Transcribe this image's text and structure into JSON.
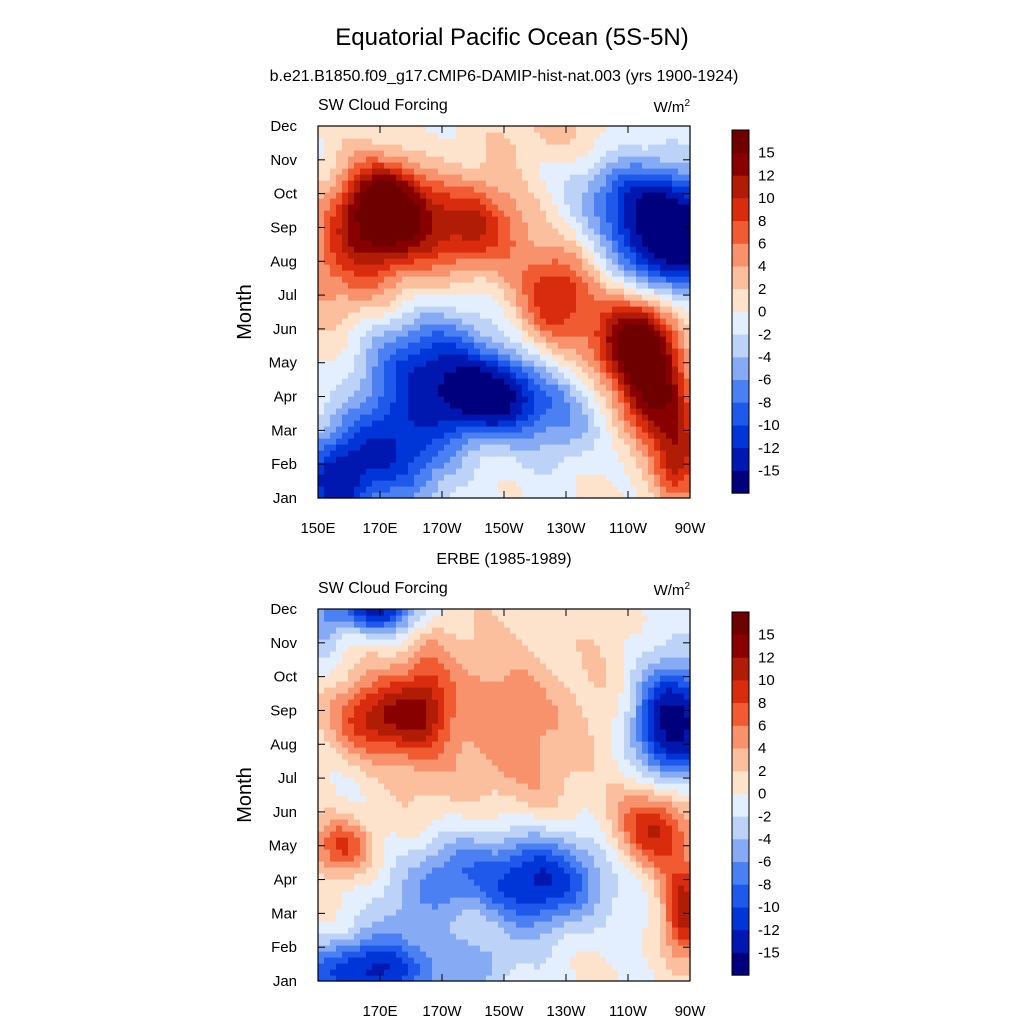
{
  "figure": {
    "title": "Equatorial Pacific Ocean (5S-5N)"
  },
  "chart_data": [
    {
      "type": "heatmap",
      "title": "b.e21.B1850.f09_g17.CMIP6-DAMIP-hist-nat.003 (yrs 1900-1924)",
      "left_label": "SW Cloud Forcing",
      "right_label": "W/m",
      "right_label_sup": "2",
      "ylabel": "Month",
      "xlabel": "",
      "x_ticks": [
        "150E",
        "170E",
        "170W",
        "150W",
        "130W",
        "110W",
        "90W"
      ],
      "y_ticks": [
        "Jan",
        "Feb",
        "Mar",
        "Apr",
        "May",
        "Jun",
        "Jul",
        "Aug",
        "Sep",
        "Oct",
        "Nov",
        "Dec"
      ],
      "xlim": [
        150,
        270
      ],
      "ylim": [
        1,
        12
      ],
      "color_levels": [
        "-15",
        "-12",
        "-10",
        "-8",
        "-6",
        "-4",
        "-2",
        "0",
        "2",
        "4",
        "6",
        "8",
        "10",
        "12",
        "15"
      ],
      "features": [
        {
          "x": 172,
          "m": 9.6,
          "sx": 9,
          "sm": 0.9,
          "a": 17
        },
        {
          "x": 196,
          "m": 9.0,
          "sx": 14,
          "sm": 1.0,
          "a": 11
        },
        {
          "x": 160,
          "m": 8.2,
          "sx": 12,
          "sm": 1.4,
          "a": 8
        },
        {
          "x": 228,
          "m": 7.0,
          "sx": 9,
          "sm": 1.0,
          "a": 10
        },
        {
          "x": 252,
          "m": 5.6,
          "sx": 9,
          "sm": 0.9,
          "a": 18
        },
        {
          "x": 258,
          "m": 4.0,
          "sx": 7,
          "sm": 0.9,
          "a": 14
        },
        {
          "x": 266,
          "m": 2.2,
          "sx": 6,
          "sm": 1.0,
          "a": 11
        },
        {
          "x": 264,
          "m": 8.8,
          "sx": 12,
          "sm": 1.1,
          "a": -21
        },
        {
          "x": 248,
          "m": 10.0,
          "sx": 10,
          "sm": 0.8,
          "a": -7
        },
        {
          "x": 205,
          "m": 4.0,
          "sx": 13,
          "sm": 0.8,
          "a": -17
        },
        {
          "x": 185,
          "m": 5.2,
          "sx": 13,
          "sm": 1.0,
          "a": -10
        },
        {
          "x": 175,
          "m": 2.5,
          "sx": 14,
          "sm": 1.2,
          "a": -11
        },
        {
          "x": 156,
          "m": 1.4,
          "sx": 8,
          "sm": 1.0,
          "a": -12
        },
        {
          "x": 230,
          "m": 3.2,
          "sx": 8,
          "sm": 0.9,
          "a": -5
        },
        {
          "x": 222,
          "m": 11.8,
          "sx": 10,
          "sm": 0.6,
          "a": 3
        }
      ]
    },
    {
      "type": "heatmap",
      "title": "ERBE (1985-1989)",
      "left_label": "SW Cloud Forcing",
      "right_label": "W/m",
      "right_label_sup": "2",
      "ylabel": "Month",
      "xlabel": "",
      "x_ticks": [
        "170E",
        "170W",
        "150W",
        "130W",
        "110W",
        "90W"
      ],
      "y_ticks": [
        "Jan",
        "Feb",
        "Mar",
        "Apr",
        "May",
        "Jun",
        "Jul",
        "Aug",
        "Sep",
        "Oct",
        "Nov",
        "Dec"
      ],
      "xlim": [
        150,
        270
      ],
      "ylim": [
        1,
        12
      ],
      "color_levels": [
        "-15",
        "-12",
        "-10",
        "-8",
        "-6",
        "-4",
        "-2",
        "0",
        "2",
        "4",
        "6",
        "8",
        "10",
        "12",
        "15"
      ],
      "features": [
        {
          "x": 170,
          "m": 8.8,
          "sx": 12,
          "sm": 0.8,
          "a": 10
        },
        {
          "x": 185,
          "m": 9.6,
          "sx": 6,
          "sm": 1.2,
          "a": 6
        },
        {
          "x": 210,
          "m": 8.5,
          "sx": 25,
          "sm": 2.0,
          "a": 5
        },
        {
          "x": 158,
          "m": 5.0,
          "sx": 7,
          "sm": 0.6,
          "a": 8
        },
        {
          "x": 258,
          "m": 5.5,
          "sx": 9,
          "sm": 0.9,
          "a": 10
        },
        {
          "x": 268,
          "m": 3.0,
          "sx": 5,
          "sm": 1.0,
          "a": 11
        },
        {
          "x": 264,
          "m": 8.6,
          "sx": 9,
          "sm": 1.2,
          "a": -17
        },
        {
          "x": 168,
          "m": 12.0,
          "sx": 10,
          "sm": 0.5,
          "a": -13
        },
        {
          "x": 222,
          "m": 4.0,
          "sx": 14,
          "sm": 1.0,
          "a": -13
        },
        {
          "x": 192,
          "m": 4.2,
          "sx": 9,
          "sm": 0.9,
          "a": -7
        },
        {
          "x": 165,
          "m": 1.3,
          "sx": 14,
          "sm": 0.7,
          "a": -13
        },
        {
          "x": 200,
          "m": 1.5,
          "sx": 10,
          "sm": 0.6,
          "a": -5
        },
        {
          "x": 178,
          "m": 3.0,
          "sx": 10,
          "sm": 0.8,
          "a": -3
        },
        {
          "x": 152,
          "m": 11.5,
          "sx": 4,
          "sm": 0.8,
          "a": -3
        }
      ]
    }
  ]
}
